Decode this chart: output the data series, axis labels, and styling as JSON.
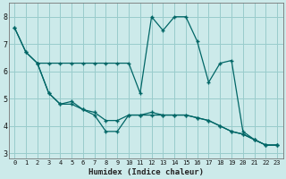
{
  "xlabel": "Humidex (Indice chaleur)",
  "bg_color": "#cceaea",
  "grid_color": "#99cccc",
  "line_color": "#006666",
  "xlim": [
    -0.5,
    23.5
  ],
  "ylim": [
    2.8,
    8.5
  ],
  "yticks": [
    3,
    4,
    5,
    6,
    7,
    8
  ],
  "xticks": [
    0,
    1,
    2,
    3,
    4,
    5,
    6,
    7,
    8,
    9,
    10,
    11,
    12,
    13,
    14,
    15,
    16,
    17,
    18,
    19,
    20,
    21,
    22,
    23
  ],
  "line1_x": [
    0,
    1,
    2,
    3,
    4,
    5,
    6,
    7,
    8,
    9,
    10,
    11,
    12,
    13,
    14,
    15,
    16,
    17,
    18,
    19,
    20,
    21,
    22,
    23
  ],
  "line1_y": [
    7.6,
    6.7,
    6.3,
    6.3,
    6.3,
    6.3,
    6.3,
    6.3,
    6.3,
    6.3,
    6.3,
    5.2,
    8.0,
    7.5,
    8.0,
    8.0,
    7.1,
    5.6,
    6.3,
    6.4,
    3.8,
    3.5,
    3.3,
    3.3
  ],
  "line2_x": [
    0,
    1,
    2,
    3,
    4,
    5,
    6,
    7,
    8,
    9,
    10,
    11,
    12,
    13,
    14,
    15,
    16,
    17,
    18,
    19,
    20,
    21,
    22,
    23
  ],
  "line2_y": [
    7.6,
    6.7,
    6.3,
    5.2,
    4.8,
    4.8,
    4.6,
    4.5,
    4.2,
    4.2,
    4.4,
    4.4,
    4.4,
    4.4,
    4.4,
    4.4,
    4.3,
    4.2,
    4.0,
    3.8,
    3.7,
    3.5,
    3.3,
    3.3
  ],
  "line3_x": [
    2,
    3,
    4,
    5,
    6,
    7,
    8,
    9,
    10,
    11,
    12,
    13,
    14,
    15,
    16,
    17,
    18,
    19,
    20,
    21,
    22,
    23
  ],
  "line3_y": [
    6.3,
    5.2,
    4.8,
    4.9,
    4.6,
    4.4,
    3.8,
    3.8,
    4.4,
    4.4,
    4.5,
    4.4,
    4.4,
    4.4,
    4.3,
    4.2,
    4.0,
    3.8,
    3.7,
    3.5,
    3.3,
    3.3
  ]
}
